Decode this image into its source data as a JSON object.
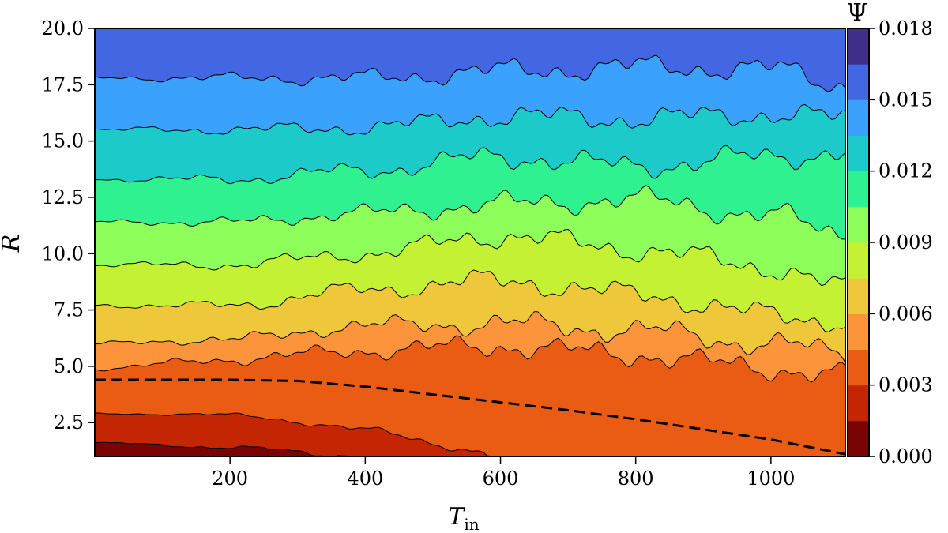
{
  "chart_data": {
    "type": "heatmap",
    "subtype": "filled-contour",
    "title": "",
    "xlabel": {
      "main": "T",
      "sub": "in"
    },
    "ylabel": "R",
    "xlim": [
      0,
      1110
    ],
    "ylim": [
      1.0,
      20.0
    ],
    "x_ticks": [
      200,
      400,
      600,
      800,
      1000
    ],
    "x_tick_labels": [
      "200",
      "400",
      "600",
      "800",
      "1000"
    ],
    "y_ticks": [
      2.5,
      5.0,
      7.5,
      10.0,
      12.5,
      15.0,
      17.5,
      20.0
    ],
    "y_tick_labels": [
      "2.5",
      "5.0",
      "7.5",
      "10.0",
      "12.5",
      "15.0",
      "17.5",
      "20.0"
    ],
    "colorbar": {
      "label": "Ψ",
      "range": [
        0.0,
        0.018
      ],
      "ticks": [
        0.0,
        0.003,
        0.006,
        0.009,
        0.012,
        0.015,
        0.018
      ],
      "tick_labels": [
        "0.000",
        "0.003",
        "0.006",
        "0.009",
        "0.012",
        "0.015",
        "0.018"
      ],
      "colors": [
        "#7a0403",
        "#c42503",
        "#ea5c13",
        "#fb943a",
        "#eec83a",
        "#c4f134",
        "#8dfe5a",
        "#30f190",
        "#1ccbc9",
        "#3aa2fc",
        "#4366e2",
        "#412e8a"
      ]
    },
    "contour_levels": [
      0.0015,
      0.003,
      0.0045,
      0.006,
      0.0075,
      0.009,
      0.0105,
      0.012,
      0.0135,
      0.015,
      0.0165
    ],
    "contours_R_at_x": {
      "x": [
        0,
        200,
        400,
        600,
        800,
        1000,
        1110
      ],
      "levels_R": [
        [
          1.6,
          1.4,
          1.0,
          1.0,
          1.0,
          1.0,
          1.0
        ],
        [
          2.9,
          2.85,
          2.2,
          1.0,
          1.0,
          1.0,
          1.0
        ],
        [
          4.9,
          5.3,
          5.7,
          5.9,
          5.5,
          4.9,
          4.6
        ],
        [
          6.0,
          6.2,
          6.8,
          6.9,
          6.6,
          6.0,
          5.6
        ],
        [
          7.7,
          7.7,
          8.4,
          8.8,
          8.2,
          7.3,
          7.0
        ],
        [
          9.5,
          9.5,
          10.0,
          10.8,
          10.2,
          9.4,
          8.5
        ],
        [
          11.4,
          11.4,
          11.8,
          12.2,
          12.4,
          11.7,
          10.9
        ],
        [
          13.3,
          13.3,
          13.7,
          14.3,
          13.9,
          14.3,
          14.5
        ],
        [
          15.5,
          15.5,
          15.6,
          16.1,
          16.0,
          16.2,
          16.0
        ],
        [
          17.8,
          17.8,
          17.8,
          18.1,
          18.3,
          18.2,
          17.5
        ],
        [
          20.0,
          20.0,
          20.0,
          20.0,
          20.0,
          20.0,
          20.0
        ]
      ]
    },
    "dashed_curve": {
      "x": [
        0,
        100,
        200,
        300,
        400,
        500,
        600,
        700,
        800,
        900,
        1000,
        1110
      ],
      "y": [
        4.4,
        4.4,
        4.4,
        4.35,
        4.1,
        3.75,
        3.4,
        3.05,
        2.65,
        2.2,
        1.75,
        1.1
      ]
    }
  }
}
